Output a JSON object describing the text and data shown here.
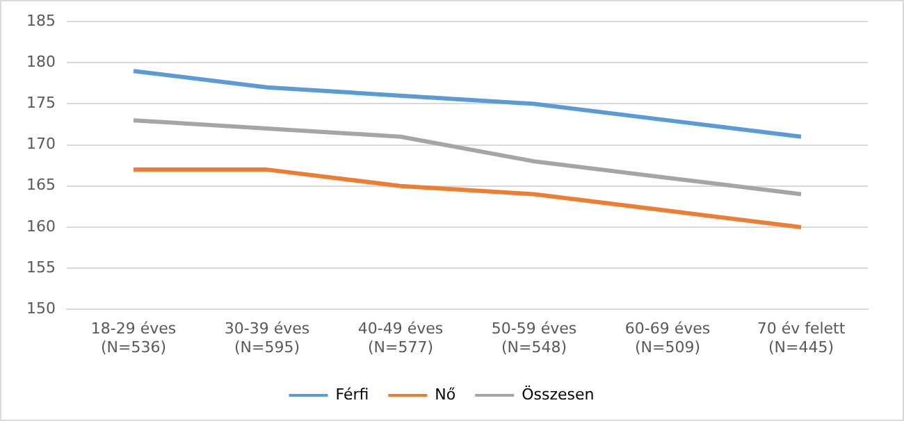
{
  "chart_data": {
    "type": "line",
    "categories": [
      "18-29 éves\n(N=536)",
      "30-39 éves\n(N=595)",
      "40-49 éves\n(N=577)",
      "50-59 éves\n(N=548)",
      "60-69 éves\n(N=509)",
      "70 év felett\n(N=445)"
    ],
    "series": [
      {
        "name": "Férfi",
        "color": "#5b9bd5",
        "values": [
          179,
          177,
          176,
          175,
          173,
          171
        ]
      },
      {
        "name": "Nő",
        "color": "#ed7d31",
        "values": [
          167,
          167,
          165,
          164,
          162,
          160
        ]
      },
      {
        "name": "Összesen",
        "color": "#a5a5a5",
        "values": [
          173,
          172,
          171,
          168,
          166,
          164
        ]
      }
    ],
    "ylim": [
      150,
      185
    ],
    "yticks": [
      150,
      155,
      160,
      165,
      170,
      175,
      180,
      185
    ],
    "grid": "y",
    "legend": "bottom",
    "marker": "none"
  }
}
